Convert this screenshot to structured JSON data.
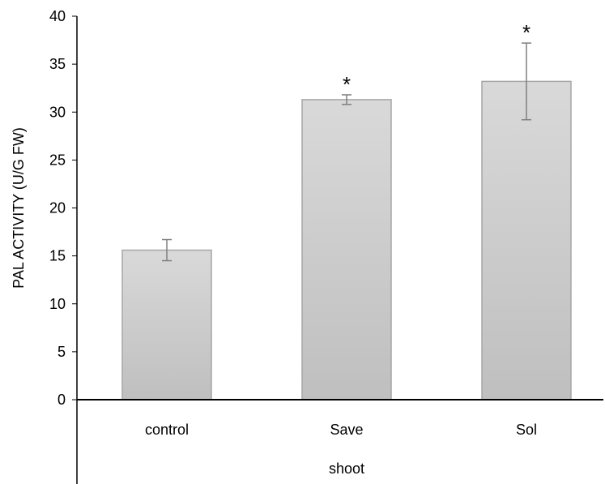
{
  "chart_data": {
    "type": "bar",
    "title": "",
    "xlabel": "shoot",
    "ylabel": "PAL ACTIVITY (U/G FW)",
    "ylim": [
      0,
      40
    ],
    "yticks": [
      0,
      5,
      10,
      15,
      20,
      25,
      30,
      35,
      40
    ],
    "ytick_labels": [
      "0",
      "5",
      "10",
      "15",
      "20",
      "25",
      "30",
      "35",
      "40"
    ],
    "categories": [
      "control",
      "Save",
      "Sol"
    ],
    "values": [
      15.6,
      31.3,
      33.2
    ],
    "errors": [
      1.1,
      0.5,
      4.0
    ],
    "annotations": [
      "",
      "*",
      "*"
    ],
    "grid": false,
    "legend": "none",
    "bar_color": "#c8c8c8",
    "bar_edge_color": "#a6a6a6",
    "error_bar_color": "#7f7f7f",
    "axis_color": "#000000"
  }
}
